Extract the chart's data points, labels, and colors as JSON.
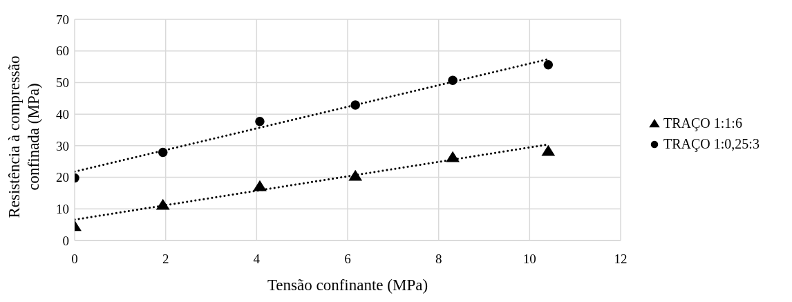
{
  "chart_data": {
    "type": "scatter",
    "xlabel": "Tensão confinante (MPa)",
    "ylabel": "Resistência à compressão\nconfinada (MPa)",
    "xlim": [
      0,
      12
    ],
    "xticks": [
      0,
      2,
      4,
      6,
      8,
      10,
      12
    ],
    "ylim": [
      0,
      70
    ],
    "yticks": [
      0,
      10,
      20,
      30,
      40,
      50,
      60,
      70
    ],
    "grid": true,
    "legend": "right",
    "series": [
      {
        "name": "TRAÇO 1:1:6",
        "color": "#000000",
        "marker": "triangle",
        "x": [
          0,
          1.94,
          4.07,
          6.17,
          8.31,
          10.41
        ],
        "values": [
          4.5,
          11.2,
          17.1,
          20.4,
          26.3,
          28.3
        ]
      },
      {
        "name": "TRAÇO 1:0,25:3",
        "color": "#000000",
        "marker": "circle",
        "x": [
          0,
          1.94,
          4.07,
          6.17,
          8.31,
          10.41
        ],
        "values": [
          19.8,
          27.9,
          37.7,
          42.9,
          50.7,
          55.6
        ]
      },
      {
        "color": "#000000",
        "type": "line",
        "marker": "none",
        "line_style": "dotted",
        "x": [
          0,
          10.41
        ],
        "values": [
          6.6,
          30.4
        ]
      },
      {
        "color": "#000000",
        "type": "line",
        "marker": "none",
        "line_style": "dotted",
        "x": [
          0,
          10.41
        ],
        "values": [
          21.8,
          57.4
        ]
      }
    ]
  }
}
